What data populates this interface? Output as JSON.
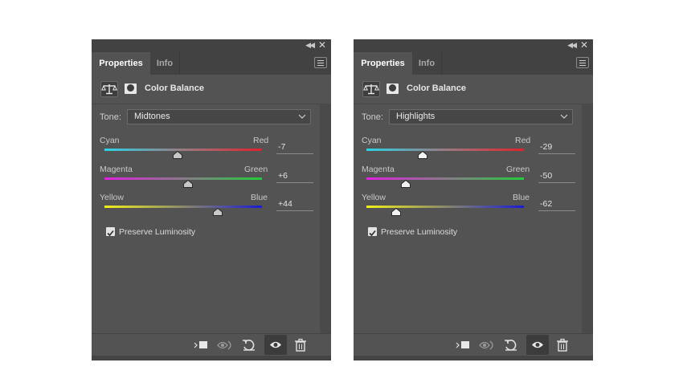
{
  "panels": [
    {
      "tabs": {
        "active": "Properties",
        "inactive": "Info"
      },
      "header_title": "Color Balance",
      "tone_label": "Tone:",
      "tone_value": "Midtones",
      "sliders": [
        {
          "left_label": "Cyan",
          "right_label": "Red",
          "value": "-7",
          "position": 0.462
        },
        {
          "left_label": "Magenta",
          "right_label": "Green",
          "value": "+6",
          "position": 0.53
        },
        {
          "left_label": "Yellow",
          "right_label": "Blue",
          "value": "+44",
          "position": 0.717
        }
      ],
      "preserve_label": "Preserve Luminosity",
      "preserve_checked": true
    },
    {
      "tabs": {
        "active": "Properties",
        "inactive": "Info"
      },
      "header_title": "Color Balance",
      "tone_label": "Tone:",
      "tone_value": "Highlights",
      "sliders": [
        {
          "left_label": "Cyan",
          "right_label": "Red",
          "value": "-29",
          "position": 0.355
        },
        {
          "left_label": "Magenta",
          "right_label": "Green",
          "value": "-50",
          "position": 0.25
        },
        {
          "left_label": "Yellow",
          "right_label": "Blue",
          "value": "-62",
          "position": 0.19
        }
      ],
      "preserve_label": "Preserve Luminosity",
      "preserve_checked": true
    }
  ],
  "colors": {
    "panel_bg": "#535353",
    "bar_bg": "#424242",
    "cyan": "#2ad3e6",
    "red": "#e0222a",
    "magenta": "#e020e0",
    "green": "#22cc3a",
    "yellow": "#f2ee1c",
    "blue": "#1a1ad8"
  },
  "icons": [
    "collapse-icon",
    "close-icon",
    "panel-menu-icon",
    "balance-scale-icon",
    "layer-mask-icon",
    "chevron-down-icon",
    "checkbox-icon",
    "clip-to-layer-icon",
    "view-previous-icon",
    "reset-icon",
    "visibility-eye-icon",
    "trash-icon",
    "slider-thumb-icon"
  ]
}
